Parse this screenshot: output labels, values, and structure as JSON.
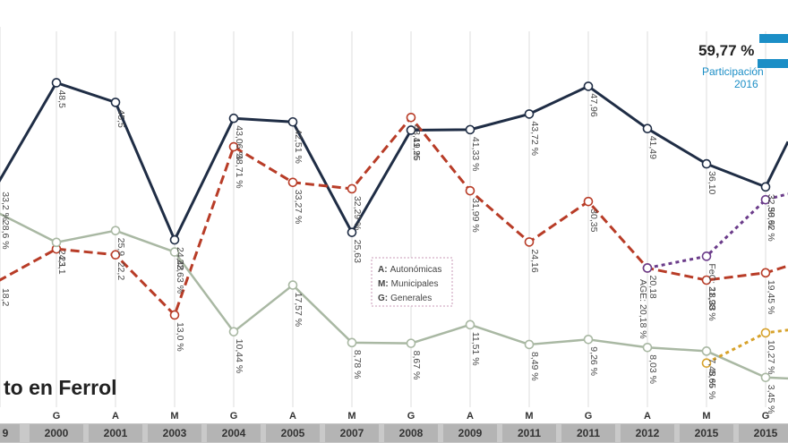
{
  "chart_data": {
    "type": "line",
    "title": "",
    "subtitle_fragment": "to en Ferrol",
    "xlabel": "",
    "ylabel": "",
    "ylim": [
      0,
      55
    ],
    "categories": [
      "2000",
      "2001",
      "2003",
      "2004",
      "2005",
      "2007",
      "2008",
      "2009",
      "2011",
      "2011",
      "2012",
      "2015",
      "2015"
    ],
    "election_types": [
      "G",
      "A",
      "M",
      "G",
      "A",
      "M",
      "G",
      "A",
      "M",
      "G",
      "A",
      "M",
      "G"
    ],
    "edge_left_year_fragment": "9",
    "edge_left_type_fragment": "",
    "series": [
      {
        "key": "dark",
        "color": "#1f2d45",
        "values": [
          48.5,
          45.5,
          24.48,
          43.06,
          42.51,
          25.63,
          41.25,
          41.33,
          43.72,
          47.96,
          41.49,
          36.1,
          32.58
        ],
        "labels": [
          "48,5",
          "45,5",
          "24,48",
          "43,06 %",
          "42,51 %",
          "25,63",
          "41,25",
          "41,33 %",
          "43,72 %",
          "47,96",
          "41,49",
          "36,10",
          "32,58 %"
        ],
        "edge_left_value": 33.2,
        "edge_left_label": "33,2 %"
      },
      {
        "key": "red",
        "color": "#b83c27",
        "values": [
          23.1,
          22.2,
          13.0,
          38.71,
          33.27,
          32.29,
          43.19,
          31.99,
          24.16,
          30.35,
          20.18,
          18.33,
          19.45
        ],
        "labels": [
          "23,1",
          "22,2",
          "13,0 %",
          "38,71 %",
          "33,27 %",
          "32,29 %",
          "43,19 %",
          "31,99 %",
          "24,16",
          "30,35",
          "20,18",
          "18,33",
          "19,45 %"
        ],
        "edge_left_value": 18.2,
        "edge_left_label": "18,2"
      },
      {
        "key": "green",
        "color": "#a9b8a3",
        "values": [
          24.1,
          25.9,
          22.63,
          10.44,
          17.57,
          8.78,
          8.67,
          11.51,
          8.49,
          9.26,
          8.03,
          7.48,
          3.45
        ],
        "labels": [
          "24,1",
          "25,9",
          "22,63 %",
          "10,44 %",
          "17,57 %",
          "8,78 %",
          "8,67 %",
          "11,51 %",
          "8,49 %",
          "9,26 %",
          "8,03 %",
          "7,48 %",
          "3,45 %"
        ],
        "edge_left_value": 28.6,
        "edge_left_label": "28,6 %"
      }
    ],
    "dotted_series": [
      {
        "key": "purple",
        "color": "#6b3c8a",
        "values": [
          20.18,
          21.98,
          30.62
        ],
        "labels": [
          "",
          "FeC: 21,98 %",
          "30,62 %"
        ],
        "x_index": [
          10,
          11,
          12
        ]
      },
      {
        "key": "orange",
        "color": "#d7a22b",
        "values": [
          5.65,
          10.27
        ],
        "labels": [
          "5,65 %",
          "10,27 %"
        ],
        "x_index": [
          11,
          12
        ]
      }
    ],
    "annotation_age": "AGE: 20,18 %",
    "legend": [
      {
        "code": "A:",
        "name": "Autonómicas"
      },
      {
        "code": "M:",
        "name": "Municipales"
      },
      {
        "code": "G:",
        "name": "Generales"
      }
    ],
    "participation": {
      "value": "59,77 %",
      "label_line1": "Participación",
      "label_line2": "2016"
    }
  }
}
